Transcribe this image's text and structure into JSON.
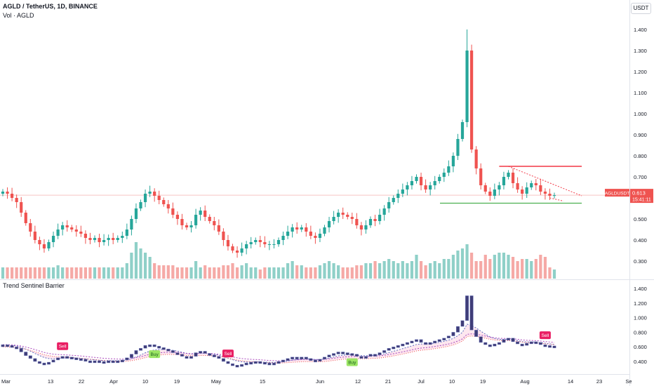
{
  "header": {
    "title": "AGLD / TetherUS, 1D, BINANCE",
    "volume_label": "Vol · AGLD",
    "currency": "USDT"
  },
  "price_tag": {
    "symbol": "AGLDUSDT",
    "price": "0.613",
    "countdown": "15:41:11",
    "value": 0.613
  },
  "indicator": {
    "title": "Trend Sentinel Barrier"
  },
  "colors": {
    "up": "#26a69a",
    "down": "#ef5350",
    "vol_up": "#8fd0c8",
    "vol_down": "#f5a9a6",
    "resistance": "#f23645",
    "support": "#4caf50",
    "ind_box": "#3f3d78",
    "sell_badge": "#e91e63",
    "buy_badge": "#9be564"
  },
  "chart_data": [
    {
      "type": "candlestick",
      "x_axis_labels": [
        "Mar",
        "13",
        "22",
        "Apr",
        "10",
        "19",
        "May",
        "15",
        "Jun",
        "12",
        "21",
        "Jul",
        "10",
        "19",
        "Aug",
        "14",
        "23",
        "Se"
      ],
      "y_ticks": [
        "1.400",
        "1.300",
        "1.200",
        "1.100",
        "1.000",
        "0.900",
        "0.800",
        "0.700",
        "0.600",
        "0.500",
        "0.400",
        "0.300"
      ],
      "ylim": [
        0.245,
        1.44
      ],
      "series": [
        {
          "name": "AGLDUSDT",
          "close": [
            0.63,
            0.62,
            0.6,
            0.58,
            0.53,
            0.48,
            0.44,
            0.4,
            0.38,
            0.36,
            0.39,
            0.42,
            0.45,
            0.47,
            0.46,
            0.45,
            0.44,
            0.43,
            0.41,
            0.4,
            0.41,
            0.39,
            0.4,
            0.41,
            0.4,
            0.41,
            0.42,
            0.45,
            0.5,
            0.55,
            0.58,
            0.62,
            0.63,
            0.61,
            0.59,
            0.57,
            0.55,
            0.52,
            0.5,
            0.47,
            0.46,
            0.47,
            0.52,
            0.54,
            0.51,
            0.49,
            0.47,
            0.44,
            0.4,
            0.37,
            0.35,
            0.34,
            0.36,
            0.38,
            0.39,
            0.4,
            0.39,
            0.38,
            0.38,
            0.38,
            0.4,
            0.42,
            0.44,
            0.46,
            0.45,
            0.46,
            0.44,
            0.42,
            0.41,
            0.43,
            0.46,
            0.49,
            0.51,
            0.53,
            0.52,
            0.51,
            0.5,
            0.47,
            0.45,
            0.47,
            0.5,
            0.49,
            0.52,
            0.55,
            0.58,
            0.6,
            0.62,
            0.64,
            0.66,
            0.68,
            0.7,
            0.66,
            0.64,
            0.66,
            0.68,
            0.7,
            0.72,
            0.75,
            0.8,
            0.88,
            0.96,
            1.3,
            0.83,
            0.74,
            0.66,
            0.63,
            0.61,
            0.64,
            0.66,
            0.7,
            0.72,
            0.67,
            0.64,
            0.62,
            0.65,
            0.67,
            0.66,
            0.63,
            0.62,
            0.61,
            0.613
          ]
        },
        {
          "name": "Vol · AGLD",
          "values": [
            0.27,
            0.27,
            0.27,
            0.27,
            0.27,
            0.27,
            0.27,
            0.27,
            0.27,
            0.27,
            0.27,
            0.27,
            0.28,
            0.27,
            0.27,
            0.27,
            0.27,
            0.27,
            0.27,
            0.27,
            0.27,
            0.27,
            0.27,
            0.27,
            0.27,
            0.27,
            0.27,
            0.29,
            0.34,
            0.39,
            0.36,
            0.34,
            0.32,
            0.29,
            0.28,
            0.28,
            0.28,
            0.28,
            0.27,
            0.27,
            0.27,
            0.27,
            0.3,
            0.27,
            0.28,
            0.27,
            0.27,
            0.27,
            0.28,
            0.28,
            0.29,
            0.27,
            0.28,
            0.29,
            0.27,
            0.27,
            0.26,
            0.27,
            0.27,
            0.27,
            0.27,
            0.27,
            0.29,
            0.3,
            0.28,
            0.28,
            0.27,
            0.27,
            0.27,
            0.28,
            0.29,
            0.3,
            0.29,
            0.28,
            0.27,
            0.27,
            0.27,
            0.28,
            0.28,
            0.29,
            0.29,
            0.3,
            0.29,
            0.3,
            0.31,
            0.3,
            0.29,
            0.3,
            0.29,
            0.3,
            0.33,
            0.3,
            0.28,
            0.29,
            0.3,
            0.29,
            0.31,
            0.31,
            0.33,
            0.35,
            0.36,
            0.38,
            0.34,
            0.3,
            0.3,
            0.33,
            0.31,
            0.33,
            0.34,
            0.34,
            0.33,
            0.32,
            0.3,
            0.31,
            0.31,
            0.3,
            0.31,
            0.33,
            0.32,
            0.27,
            0.26
          ]
        }
      ],
      "annotations": {
        "resistance_level": 0.75,
        "support_level": 0.575,
        "price_marker": 0.613
      }
    },
    {
      "type": "indicator",
      "title": "Trend Sentinel Barrier",
      "y_ticks": [
        "1.400",
        "1.200",
        "1.000",
        "0.800",
        "0.600",
        "0.400"
      ],
      "ylim": [
        0.3,
        1.44
      ],
      "signals": [
        {
          "label": "Sell",
          "type": "sell",
          "index": 13
        },
        {
          "label": "Buy",
          "type": "buy",
          "index": 33
        },
        {
          "label": "Sell",
          "type": "sell",
          "index": 49
        },
        {
          "label": "Buy",
          "type": "buy",
          "index": 76
        },
        {
          "label": "Sell",
          "type": "sell",
          "index": 118
        }
      ]
    }
  ]
}
